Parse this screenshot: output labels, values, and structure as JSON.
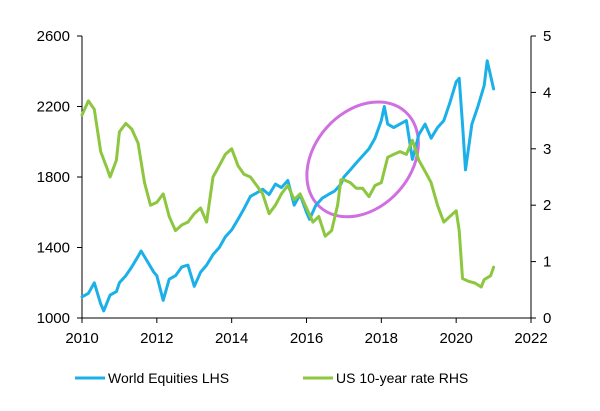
{
  "chart_data": {
    "type": "line",
    "title": "",
    "xlabel": "",
    "ylabel_left": "",
    "ylabel_right": "",
    "xlim": [
      2010,
      2022
    ],
    "ylim_left": [
      1000,
      2600
    ],
    "ylim_right": [
      0,
      5
    ],
    "x_ticks": [
      2010,
      2012,
      2014,
      2016,
      2018,
      2020,
      2022
    ],
    "y_ticks_left": [
      1000,
      1400,
      1800,
      2200,
      2600
    ],
    "y_ticks_right": [
      0,
      1,
      2,
      3,
      4,
      5
    ],
    "grid": false,
    "legend_position": "bottom",
    "series": [
      {
        "name": "World Equities LHS",
        "axis": "left",
        "color": "#1cb0e8",
        "points": [
          [
            2010.0,
            1120
          ],
          [
            2010.17,
            1140
          ],
          [
            2010.33,
            1200
          ],
          [
            2010.5,
            1080
          ],
          [
            2010.58,
            1040
          ],
          [
            2010.75,
            1130
          ],
          [
            2010.92,
            1150
          ],
          [
            2011.0,
            1200
          ],
          [
            2011.17,
            1240
          ],
          [
            2011.33,
            1290
          ],
          [
            2011.5,
            1350
          ],
          [
            2011.58,
            1380
          ],
          [
            2011.75,
            1320
          ],
          [
            2011.92,
            1260
          ],
          [
            2012.0,
            1240
          ],
          [
            2012.17,
            1100
          ],
          [
            2012.33,
            1220
          ],
          [
            2012.5,
            1240
          ],
          [
            2012.67,
            1290
          ],
          [
            2012.83,
            1300
          ],
          [
            2013.0,
            1180
          ],
          [
            2013.17,
            1260
          ],
          [
            2013.33,
            1300
          ],
          [
            2013.5,
            1360
          ],
          [
            2013.67,
            1400
          ],
          [
            2013.83,
            1460
          ],
          [
            2014.0,
            1500
          ],
          [
            2014.17,
            1560
          ],
          [
            2014.33,
            1620
          ],
          [
            2014.5,
            1690
          ],
          [
            2014.67,
            1710
          ],
          [
            2014.83,
            1730
          ],
          [
            2015.0,
            1700
          ],
          [
            2015.17,
            1760
          ],
          [
            2015.33,
            1740
          ],
          [
            2015.5,
            1780
          ],
          [
            2015.67,
            1640
          ],
          [
            2015.83,
            1700
          ],
          [
            2016.0,
            1600
          ],
          [
            2016.08,
            1560
          ],
          [
            2016.25,
            1640
          ],
          [
            2016.42,
            1680
          ],
          [
            2016.58,
            1700
          ],
          [
            2016.75,
            1720
          ],
          [
            2016.92,
            1760
          ],
          [
            2017.0,
            1800
          ],
          [
            2017.17,
            1840
          ],
          [
            2017.33,
            1880
          ],
          [
            2017.5,
            1920
          ],
          [
            2017.67,
            1960
          ],
          [
            2017.83,
            2020
          ],
          [
            2018.0,
            2120
          ],
          [
            2018.08,
            2200
          ],
          [
            2018.17,
            2100
          ],
          [
            2018.33,
            2080
          ],
          [
            2018.5,
            2100
          ],
          [
            2018.67,
            2120
          ],
          [
            2018.83,
            1900
          ],
          [
            2019.0,
            2040
          ],
          [
            2019.17,
            2100
          ],
          [
            2019.33,
            2020
          ],
          [
            2019.5,
            2080
          ],
          [
            2019.67,
            2120
          ],
          [
            2019.83,
            2220
          ],
          [
            2020.0,
            2340
          ],
          [
            2020.08,
            2360
          ],
          [
            2020.17,
            2100
          ],
          [
            2020.25,
            1840
          ],
          [
            2020.42,
            2100
          ],
          [
            2020.58,
            2200
          ],
          [
            2020.75,
            2320
          ],
          [
            2020.83,
            2460
          ],
          [
            2021.0,
            2300
          ]
        ]
      },
      {
        "name": "US 10-year rate RHS",
        "axis": "right",
        "color": "#8dc63f",
        "points": [
          [
            2010.0,
            3.6
          ],
          [
            2010.17,
            3.85
          ],
          [
            2010.33,
            3.7
          ],
          [
            2010.5,
            2.95
          ],
          [
            2010.67,
            2.65
          ],
          [
            2010.75,
            2.5
          ],
          [
            2010.92,
            2.8
          ],
          [
            2011.0,
            3.3
          ],
          [
            2011.17,
            3.45
          ],
          [
            2011.33,
            3.35
          ],
          [
            2011.5,
            3.1
          ],
          [
            2011.67,
            2.4
          ],
          [
            2011.83,
            2.0
          ],
          [
            2012.0,
            2.05
          ],
          [
            2012.17,
            2.2
          ],
          [
            2012.33,
            1.8
          ],
          [
            2012.5,
            1.55
          ],
          [
            2012.67,
            1.65
          ],
          [
            2012.83,
            1.7
          ],
          [
            2013.0,
            1.85
          ],
          [
            2013.17,
            1.95
          ],
          [
            2013.33,
            1.7
          ],
          [
            2013.5,
            2.5
          ],
          [
            2013.67,
            2.7
          ],
          [
            2013.83,
            2.9
          ],
          [
            2014.0,
            3.0
          ],
          [
            2014.17,
            2.7
          ],
          [
            2014.33,
            2.55
          ],
          [
            2014.5,
            2.5
          ],
          [
            2014.67,
            2.35
          ],
          [
            2014.83,
            2.2
          ],
          [
            2015.0,
            1.85
          ],
          [
            2015.17,
            2.0
          ],
          [
            2015.33,
            2.2
          ],
          [
            2015.5,
            2.35
          ],
          [
            2015.67,
            2.1
          ],
          [
            2015.83,
            2.2
          ],
          [
            2016.0,
            1.95
          ],
          [
            2016.17,
            1.7
          ],
          [
            2016.33,
            1.8
          ],
          [
            2016.5,
            1.45
          ],
          [
            2016.67,
            1.55
          ],
          [
            2016.83,
            2.0
          ],
          [
            2016.92,
            2.45
          ],
          [
            2017.0,
            2.45
          ],
          [
            2017.17,
            2.4
          ],
          [
            2017.33,
            2.3
          ],
          [
            2017.5,
            2.3
          ],
          [
            2017.67,
            2.15
          ],
          [
            2017.83,
            2.35
          ],
          [
            2018.0,
            2.4
          ],
          [
            2018.17,
            2.85
          ],
          [
            2018.33,
            2.9
          ],
          [
            2018.5,
            2.95
          ],
          [
            2018.67,
            2.9
          ],
          [
            2018.83,
            3.15
          ],
          [
            2019.0,
            2.8
          ],
          [
            2019.17,
            2.6
          ],
          [
            2019.33,
            2.4
          ],
          [
            2019.5,
            2.0
          ],
          [
            2019.67,
            1.7
          ],
          [
            2019.83,
            1.8
          ],
          [
            2020.0,
            1.9
          ],
          [
            2020.08,
            1.55
          ],
          [
            2020.17,
            0.7
          ],
          [
            2020.33,
            0.65
          ],
          [
            2020.5,
            0.62
          ],
          [
            2020.67,
            0.55
          ],
          [
            2020.75,
            0.68
          ],
          [
            2020.92,
            0.75
          ],
          [
            2021.0,
            0.9
          ]
        ]
      }
    ],
    "annotations": [
      {
        "type": "ellipse",
        "color": "#d070e0",
        "center": [
          2017.5,
          1900
        ],
        "description": "highlighted region"
      }
    ]
  }
}
